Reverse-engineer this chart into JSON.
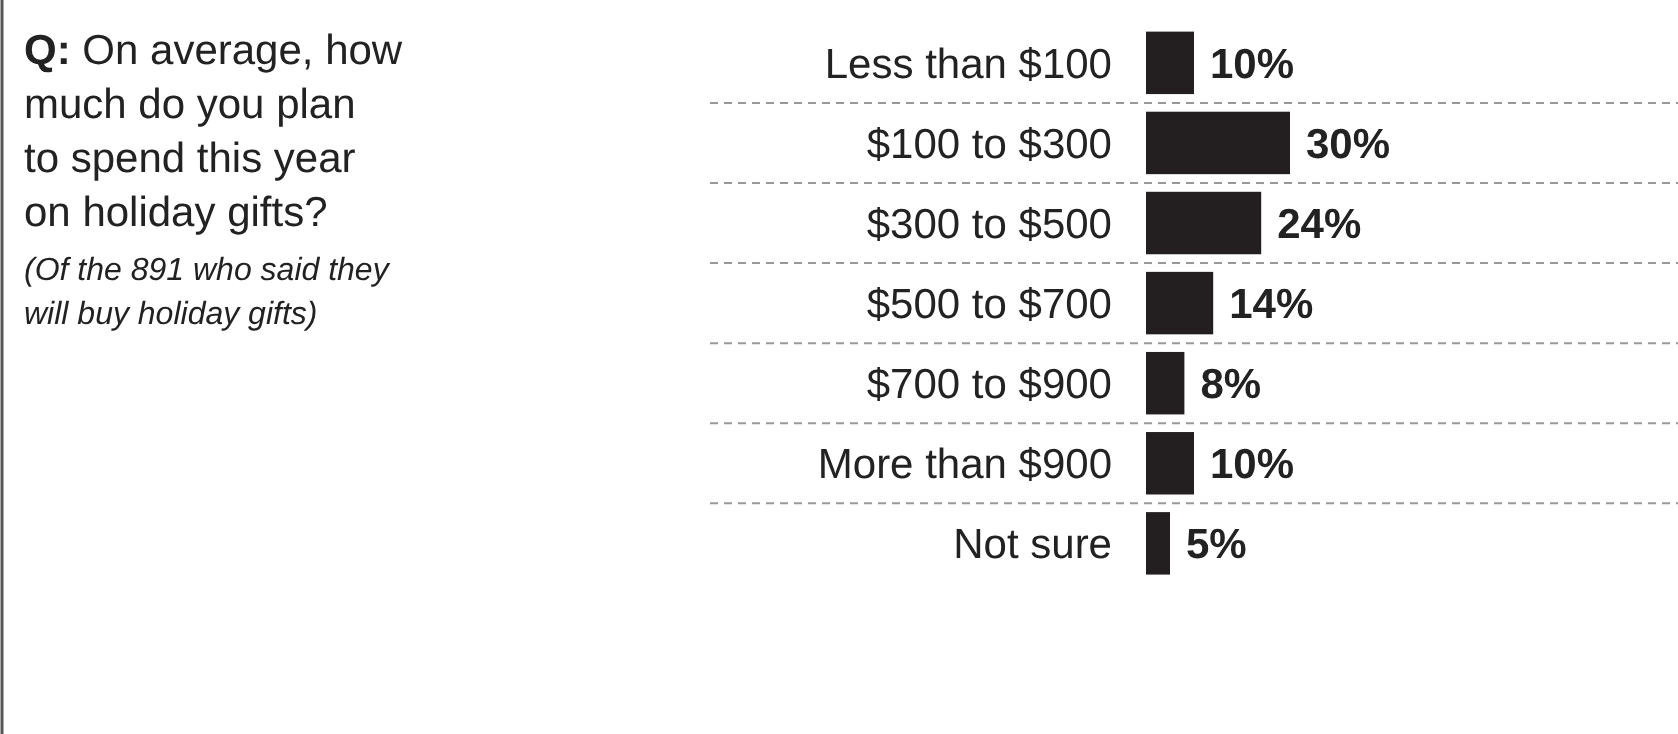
{
  "chart_data": {
    "type": "bar",
    "orientation": "horizontal",
    "title": "Q: On average, how much do you plan to spend this year on holiday gifts?",
    "subtitle": "(Of the 891 who said they will buy holiday gifts)",
    "categories": [
      "Less than $100",
      "$100 to $300",
      "$300 to $500",
      "$500 to $700",
      "$700 to $900",
      "More than $900",
      "Not sure"
    ],
    "values": [
      10,
      30,
      24,
      14,
      8,
      10,
      5
    ],
    "value_labels": [
      "10%",
      "30%",
      "24%",
      "14%",
      "8%",
      "10%",
      "5%"
    ],
    "color": "#231f20",
    "grid": "y"
  }
}
